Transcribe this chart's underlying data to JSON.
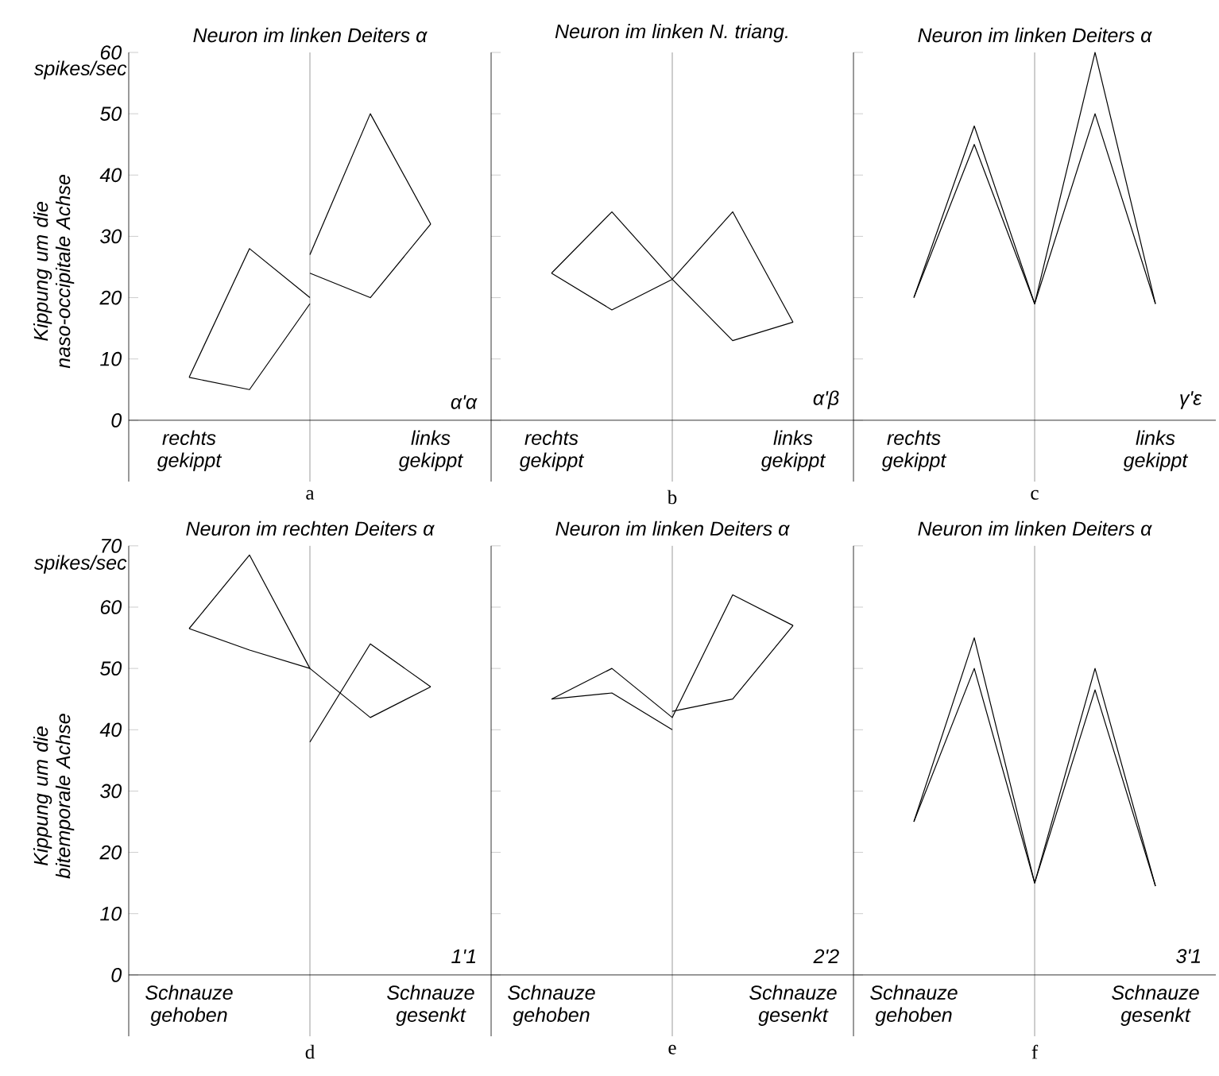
{
  "chart_data": [
    {
      "type": "line",
      "title": "Neuron im linken Deiters α",
      "xlabel": "a",
      "ylabel": "Kippung um die naso-occipitale Achse",
      "categories": [
        "rechts gekippt",
        null,
        null,
        null,
        "links gekippt"
      ],
      "ylim": [
        -10,
        60
      ],
      "yticks": [
        0,
        10,
        20,
        30,
        40,
        50,
        60
      ],
      "ref_lines": [
        {
          "axis": "x"
        }
      ],
      "annotations": [
        "spikes/sec",
        "α'α"
      ],
      "series": [
        {
          "color": "#000000",
          "values": [
            7,
            5,
            19,
            null,
            null
          ]
        },
        {
          "color": "#000000",
          "values": [
            7,
            28,
            20,
            null,
            null
          ]
        },
        {
          "color": "#000000",
          "values": [
            null,
            null,
            27,
            50,
            32
          ]
        },
        {
          "color": "#000000",
          "values": [
            null,
            null,
            24,
            20,
            32
          ]
        }
      ]
    },
    {
      "type": "line",
      "title": "Neuron im linken N. triang.",
      "xlabel": "b",
      "categories": [
        "rechts gekippt",
        null,
        null,
        null,
        "links gekippt"
      ],
      "ylim": [
        -10,
        60
      ],
      "yticks": [
        0,
        10,
        20,
        30,
        40,
        50,
        60
      ],
      "tick_labels": "x",
      "ref_lines": [
        {
          "axis": "x"
        }
      ],
      "annotations": [
        "α'β"
      ],
      "series": [
        {
          "color": "#000000",
          "values": [
            24,
            34,
            23,
            13,
            16
          ]
        },
        {
          "color": "#000000",
          "values": [
            24,
            18,
            23,
            34,
            16
          ]
        }
      ]
    },
    {
      "type": "line",
      "title": "Neuron im linken Deiters α",
      "xlabel": "c",
      "categories": [
        "rechts gekippt",
        null,
        null,
        null,
        "links gekippt"
      ],
      "ylim": [
        -10,
        60
      ],
      "yticks": [
        0,
        10,
        20,
        30,
        40,
        50,
        60
      ],
      "tick_labels": "x",
      "ref_lines": [
        {
          "axis": "x"
        }
      ],
      "annotations": [
        "γ'ε"
      ],
      "series": [
        {
          "color": "#000000",
          "values": [
            20,
            48,
            19,
            60,
            19
          ]
        },
        {
          "color": "#000000",
          "values": [
            20,
            45,
            19,
            50,
            19
          ]
        }
      ]
    },
    {
      "type": "line",
      "title": "Neuron im rechten Deiters α",
      "xlabel": "d",
      "ylabel": "Kippung um die bitemporale Achse",
      "categories": [
        "Schnauze gehoben",
        null,
        null,
        null,
        "Schnauze gesenkt"
      ],
      "ylim": [
        -10,
        70
      ],
      "yticks": [
        0,
        10,
        20,
        30,
        40,
        50,
        60,
        70
      ],
      "ref_lines": [
        {
          "axis": "x"
        }
      ],
      "annotations": [
        "spikes/sec",
        "1'1"
      ],
      "series": [
        {
          "color": "#000000",
          "values": [
            56.5,
            53,
            50,
            42,
            47
          ]
        },
        {
          "color": "#000000",
          "values": [
            56.5,
            68.5,
            50,
            null,
            null
          ]
        },
        {
          "color": "#000000",
          "values": [
            null,
            null,
            38,
            54,
            47
          ]
        }
      ]
    },
    {
      "type": "line",
      "title": "Neuron im linken Deiters α",
      "xlabel": "e",
      "categories": [
        "Schnauze gehoben",
        null,
        null,
        null,
        "Schnauze gesenkt"
      ],
      "ylim": [
        -10,
        70
      ],
      "yticks": [
        0,
        10,
        20,
        30,
        40,
        50,
        60,
        70
      ],
      "tick_labels": "x",
      "ref_lines": [
        {
          "axis": "x"
        }
      ],
      "annotations": [
        "2'2"
      ],
      "series": [
        {
          "color": "#000000",
          "values": [
            45,
            50,
            42,
            62,
            57
          ]
        },
        {
          "color": "#000000",
          "values": [
            45,
            46,
            40,
            null,
            null
          ]
        },
        {
          "color": "#000000",
          "values": [
            null,
            null,
            43,
            45,
            57
          ]
        }
      ]
    },
    {
      "type": "line",
      "title": "Neuron im linken Deiters α",
      "xlabel": "f",
      "categories": [
        "Schnauze gehoben",
        null,
        null,
        null,
        "Schnauze gesenkt"
      ],
      "ylim": [
        -10,
        70
      ],
      "yticks": [
        0,
        10,
        20,
        30,
        40,
        50,
        60,
        70
      ],
      "tick_labels": "x",
      "ref_lines": [
        {
          "axis": "x"
        }
      ],
      "annotations": [
        "3'1"
      ],
      "series": [
        {
          "color": "#000000",
          "values": [
            25,
            55,
            15,
            50,
            14.5
          ]
        },
        {
          "color": "#000000",
          "values": [
            25,
            50,
            15,
            46.5,
            14.5
          ]
        }
      ]
    }
  ]
}
